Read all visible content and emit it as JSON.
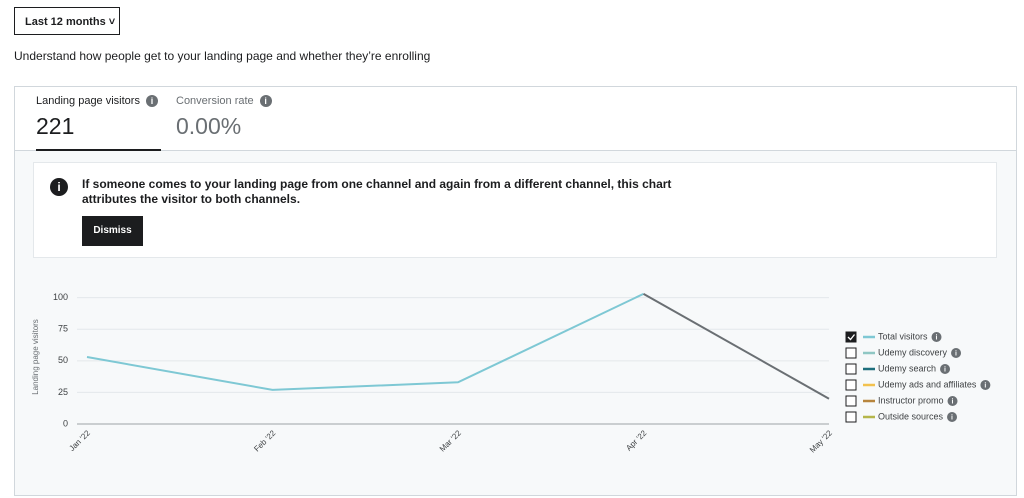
{
  "filter": {
    "label": "Last 12 months"
  },
  "description": "Understand how people get to your landing page and whether they’re enrolling",
  "tabs": [
    {
      "label": "Landing page visitors",
      "value": "221"
    },
    {
      "label": "Conversion rate",
      "value": "0.00%"
    }
  ],
  "notice": {
    "text": "If someone comes to your landing page from one channel and again from a different channel, this chart attributes the visitor to both channels.",
    "button": "Dismiss"
  },
  "chart_data": {
    "type": "line",
    "y_label": "Landing page visitors",
    "categories": [
      "Jan '22",
      "Feb '22",
      "Mar '22",
      "Apr '22",
      "May '22"
    ],
    "series": [
      {
        "name": "Total visitors",
        "color": "#7ec8d4",
        "incomplete_color": "#6a6f73",
        "values": [
          53,
          27,
          33,
          103,
          20
        ]
      }
    ],
    "ylim": [
      0,
      110
    ],
    "yticks": [
      0,
      25,
      50,
      75,
      100
    ],
    "grid": true,
    "legend": [
      {
        "name": "Total visitors",
        "color": "#7ec8d4",
        "checked": true
      },
      {
        "name": "Udemy discovery",
        "color": "#8fc7c4",
        "checked": false
      },
      {
        "name": "Udemy search",
        "color": "#1e6f7d",
        "checked": false
      },
      {
        "name": "Udemy ads and affiliates",
        "color": "#f2c14e",
        "checked": false
      },
      {
        "name": "Instructor promo",
        "color": "#b7853d",
        "checked": false
      },
      {
        "name": "Outside sources",
        "color": "#b5b64a",
        "checked": false
      }
    ]
  }
}
